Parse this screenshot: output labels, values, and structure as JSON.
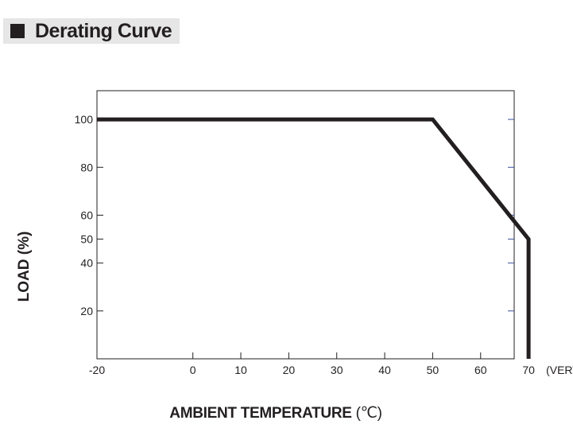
{
  "header": {
    "title": "Derating Curve"
  },
  "chart_data": {
    "type": "line",
    "xlabel": "AMBIENT TEMPERATURE",
    "xlabel_unit": "(℃)",
    "ylabel": "LOAD (%)",
    "x_ticks": [
      -20,
      0,
      10,
      20,
      30,
      40,
      50,
      60,
      70
    ],
    "x_tick_labels": [
      "-20",
      "0",
      "10",
      "20",
      "30",
      "40",
      "50",
      "60",
      "70"
    ],
    "x_extra_label": "(VERTICAL)",
    "y_ticks": [
      20,
      40,
      50,
      60,
      80,
      100
    ],
    "y_tick_labels": [
      "20",
      "40",
      "50",
      "60",
      "80",
      "100"
    ],
    "xlim": [
      -20,
      67
    ],
    "ylim": [
      0,
      112
    ],
    "grid": false,
    "series": [
      {
        "x": [
          -20,
          50,
          70,
          70
        ],
        "y": [
          100,
          100,
          50,
          0
        ],
        "color": "#231f20"
      }
    ],
    "right_tick_color": "#3b4fa0"
  }
}
